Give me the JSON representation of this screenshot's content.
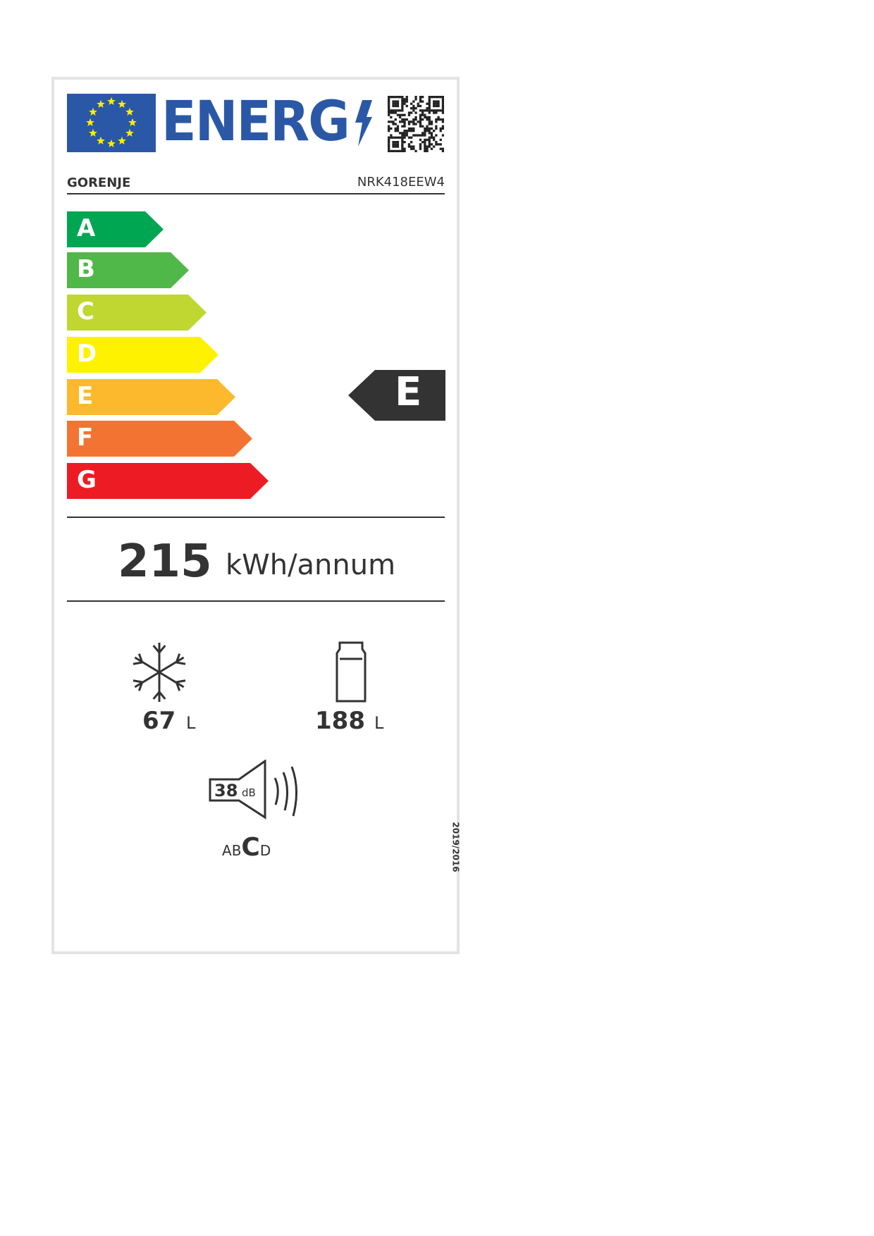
{
  "header": {
    "logo_text": "ENERG",
    "supplier": "GORENJE",
    "model": "NRK418EEW4"
  },
  "scale": {
    "classes": [
      {
        "letter": "A",
        "color": "#00a651"
      },
      {
        "letter": "B",
        "color": "#50b848"
      },
      {
        "letter": "C",
        "color": "#bfd730"
      },
      {
        "letter": "D",
        "color": "#fff200"
      },
      {
        "letter": "E",
        "color": "#fdb92d"
      },
      {
        "letter": "F",
        "color": "#f37432"
      },
      {
        "letter": "G",
        "color": "#ed1c24"
      }
    ],
    "rating": "E"
  },
  "consumption": {
    "value": "215",
    "unit": "kWh/annum"
  },
  "freezer": {
    "value": "67",
    "unit": "L",
    "icon": "snowflake-icon"
  },
  "fridge": {
    "value": "188",
    "unit": "L",
    "icon": "fridge-icon"
  },
  "noise": {
    "value": "38",
    "unit": "dB",
    "classes": [
      "A",
      "B",
      "C",
      "D"
    ],
    "noise_class": "C",
    "icon": "speaker-icon"
  },
  "regulation": "2019/2016",
  "colors": {
    "blue": "#2a58a6",
    "dark": "#333333"
  }
}
